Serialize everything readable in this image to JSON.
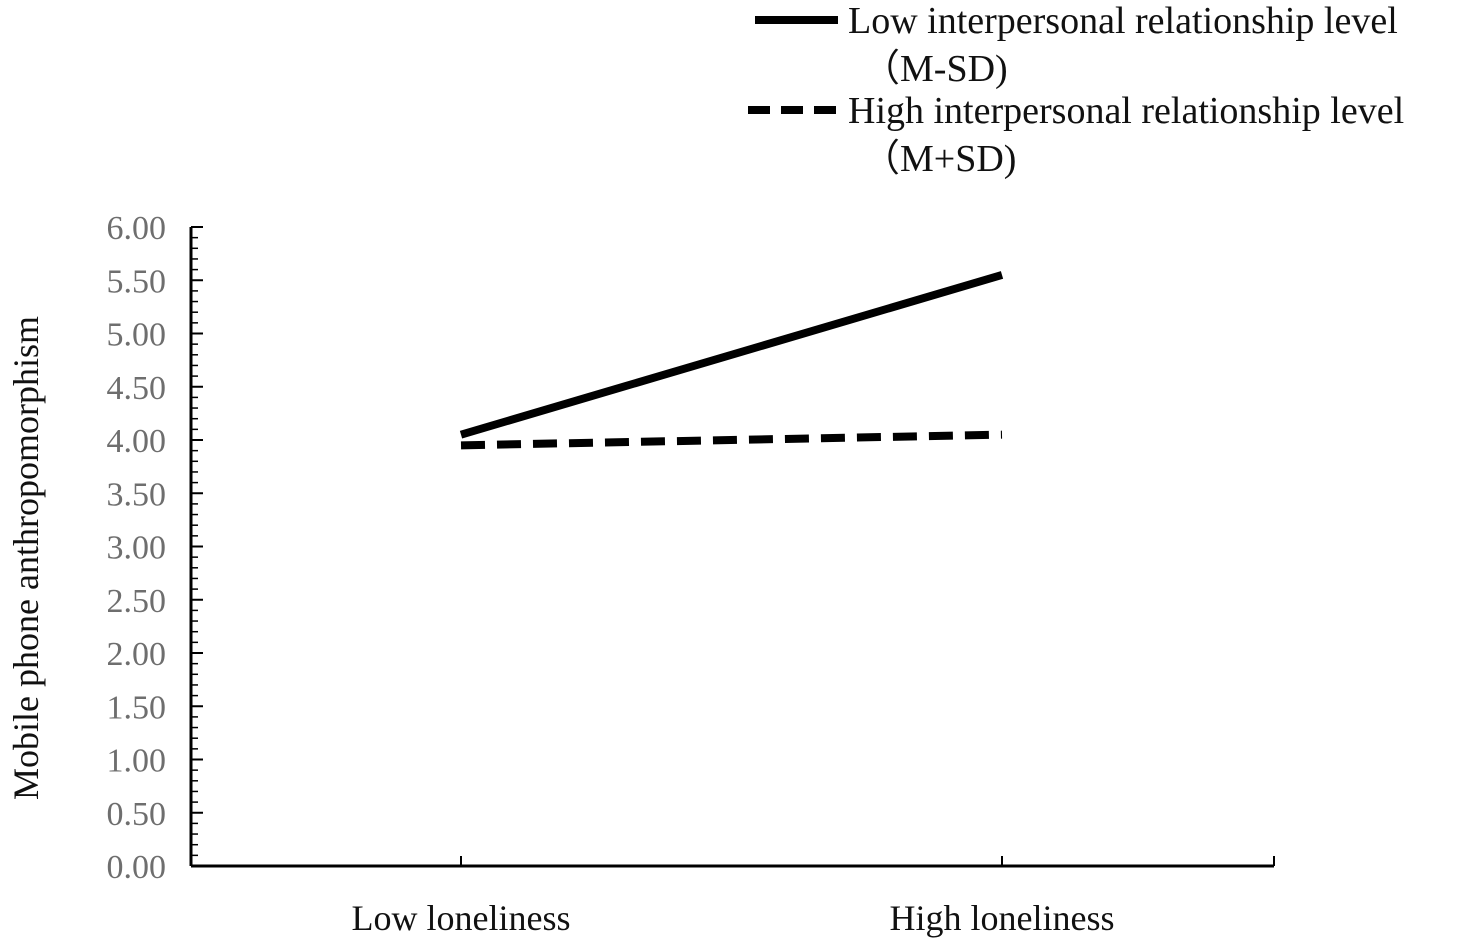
{
  "chart_data": {
    "type": "line",
    "title": "",
    "xlabel": "",
    "ylabel": "Mobile phone anthropomorphism",
    "categories": [
      "Low loneliness",
      "High loneliness"
    ],
    "ylim": [
      0,
      6
    ],
    "yticks": [
      "0.00",
      "0.50",
      "1.00",
      "1.50",
      "2.00",
      "2.50",
      "3.00",
      "3.50",
      "4.00",
      "4.50",
      "5.00",
      "5.50",
      "6.00"
    ],
    "grid": false,
    "legend_position": "top-right",
    "series": [
      {
        "name": "Low interpersonal relationship level",
        "name_suffix": "（M-SD)",
        "style": "solid",
        "color": "#000000",
        "values": [
          4.05,
          5.55
        ]
      },
      {
        "name": "High interpersonal relationship level",
        "name_suffix": "（M+SD)",
        "style": "dashed",
        "color": "#000000",
        "values": [
          3.95,
          4.05
        ]
      }
    ]
  }
}
